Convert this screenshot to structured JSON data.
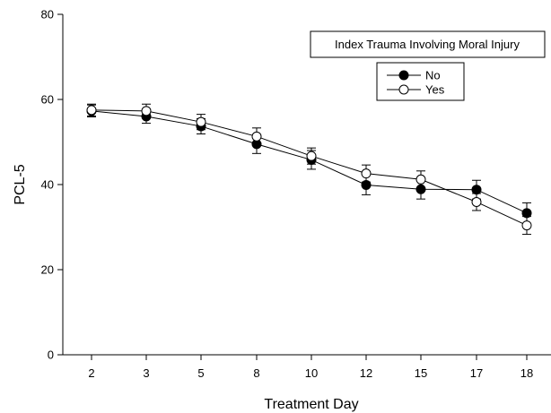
{
  "chart_data": {
    "type": "line",
    "title": "",
    "xlabel": "Treatment Day",
    "ylabel": "PCL-5",
    "categories": [
      "2",
      "3",
      "5",
      "8",
      "10",
      "12",
      "15",
      "17",
      "18"
    ],
    "ylim": [
      0,
      80
    ],
    "yticks": [
      "0",
      "20",
      "40",
      "60",
      "80"
    ],
    "grid": false,
    "legend": {
      "title": "Index Trauma Involving Moral Injury",
      "placement": "top-right"
    },
    "series": [
      {
        "name": "No",
        "marker": "filled-circle",
        "color": "#000000",
        "values": [
          57.3,
          56.0,
          53.7,
          49.5,
          45.8,
          39.9,
          38.9,
          38.8,
          33.3
        ],
        "error": [
          1.4,
          1.6,
          1.8,
          2.2,
          2.2,
          2.3,
          2.3,
          2.2,
          2.4
        ]
      },
      {
        "name": "Yes",
        "marker": "open-circle",
        "color": "#000000",
        "values": [
          57.5,
          57.3,
          54.7,
          51.3,
          46.7,
          42.6,
          41.2,
          35.9,
          30.4
        ],
        "error": [
          1.4,
          1.6,
          1.8,
          2.0,
          1.9,
          2.0,
          2.0,
          2.0,
          2.1
        ]
      }
    ]
  }
}
